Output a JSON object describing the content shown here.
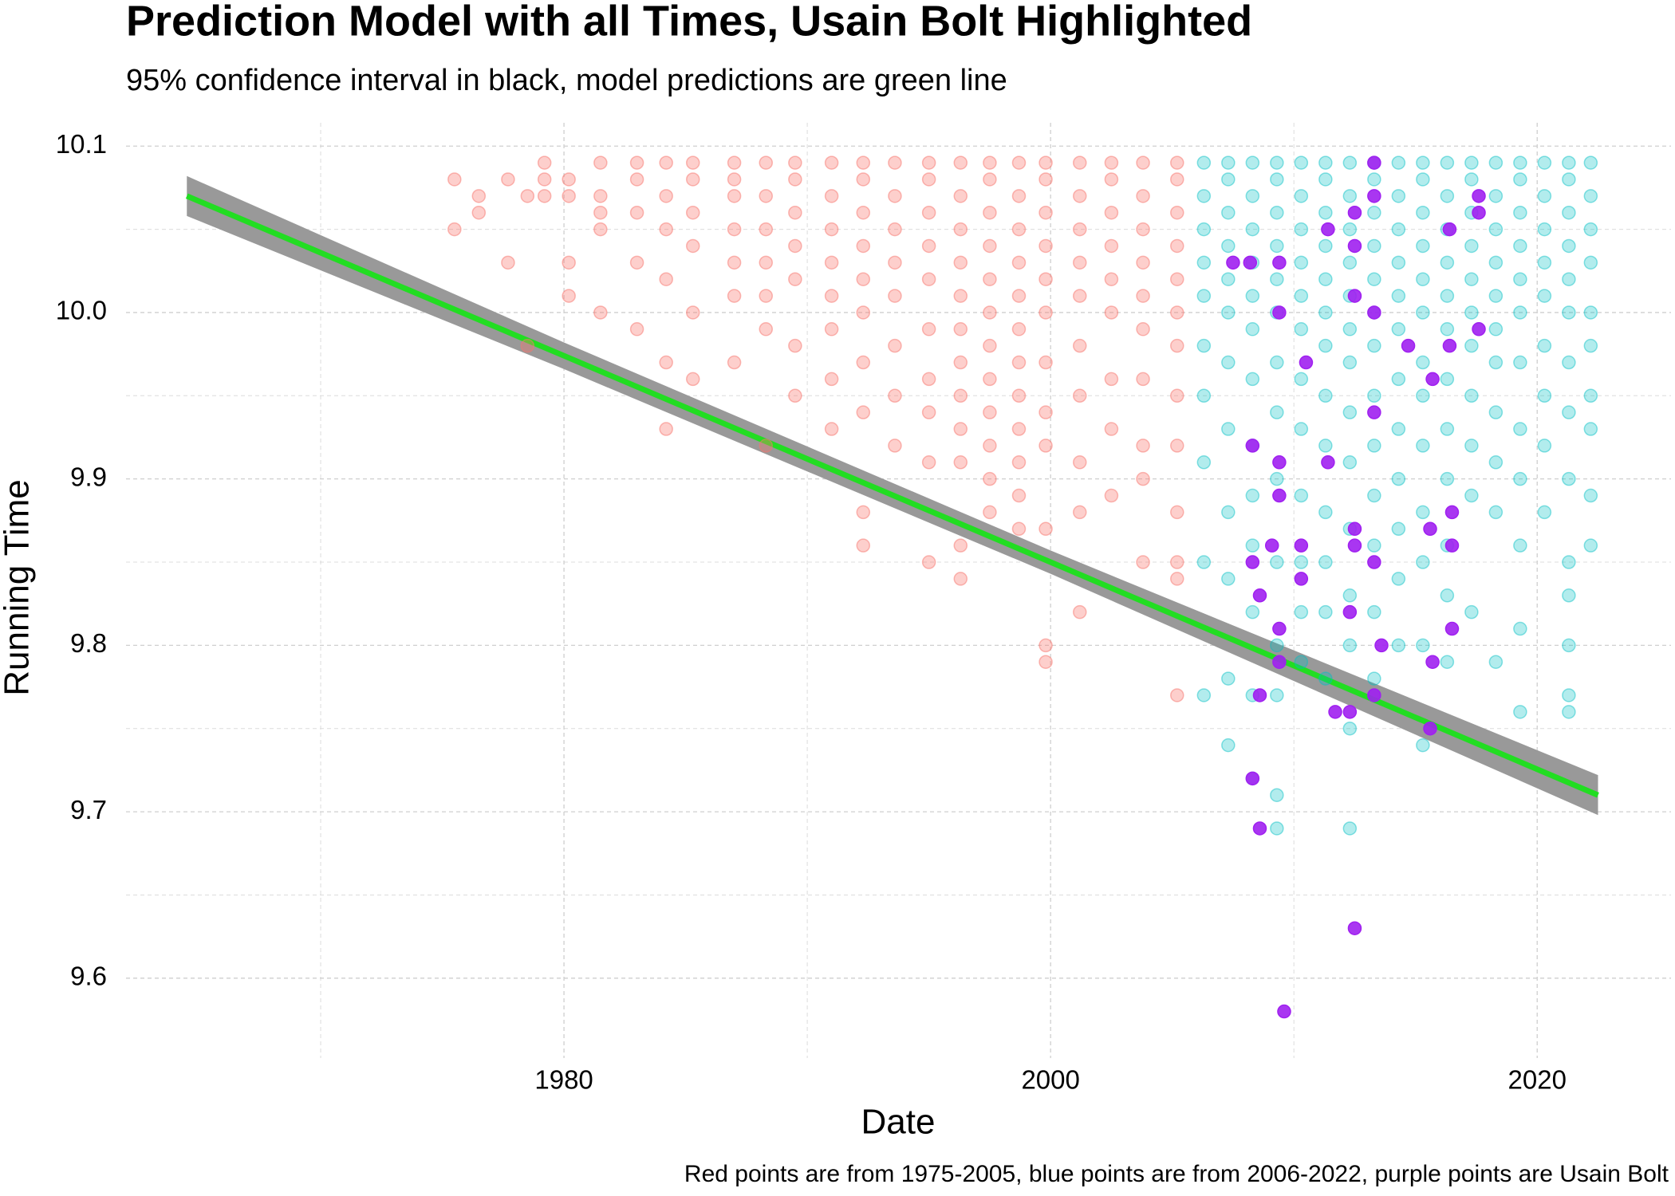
{
  "chart_data": {
    "type": "scatter",
    "title": "Prediction Model with all Times, Usain Bolt Highlighted",
    "subtitle": "95% confidence interval in black, model predictions are green line",
    "x_label": "Date",
    "y_label": "Running Time",
    "caption": "Red points are from 1975-2005, blue points are from 2006-2022, purple points are Usain Bolt",
    "xlim": [
      1962,
      2025.5
    ],
    "ylim": [
      9.552,
      10.114
    ],
    "xticks": [
      1980,
      2000,
      2020
    ],
    "xminor": [
      1970,
      1990,
      2010
    ],
    "yticks": [
      9.6,
      9.7,
      9.8,
      9.9,
      {
        "value": 10,
        "label": "10.0"
      },
      10.1
    ],
    "yminor": [
      9.65,
      9.75,
      9.85,
      9.95,
      10.05
    ],
    "grid": true,
    "line": {
      "color": "#22dd22",
      "band_color": "#999999",
      "x": [
        1964.5,
        1980,
        2000,
        2022.5
      ],
      "values": [
        10.07,
        9.974,
        9.85,
        9.71
      ],
      "lower": [
        10.058,
        9.966,
        9.843,
        9.698
      ],
      "upper": [
        10.082,
        9.982,
        9.857,
        9.722
      ]
    },
    "series": [
      {
        "color": "#F8766D",
        "opacity": 0.35,
        "x": [
          1975.5,
          1975.5,
          1976.5,
          1976.5,
          1977.7,
          1977.7,
          1978.5,
          1978.5,
          1979.2,
          1979.2,
          1979.2,
          1980.2,
          1980.2,
          1980.2,
          1980.2,
          1981.5,
          1981.5,
          1981.5,
          1981.5,
          1981.5,
          1983,
          1983,
          1983,
          1983,
          1983,
          1984.2,
          1984.2,
          1984.2,
          1984.2,
          1984.2,
          1984.2,
          1985.3,
          1985.3,
          1985.3,
          1985.3,
          1985.3,
          1985.3,
          1987,
          1987,
          1987,
          1987,
          1987,
          1987,
          1987,
          1988.3,
          1988.3,
          1988.3,
          1988.3,
          1988.3,
          1988.3,
          1988.3,
          1989.5,
          1989.5,
          1989.5,
          1989.5,
          1989.5,
          1989.5,
          1989.5,
          1991,
          1991,
          1991,
          1991,
          1991,
          1991,
          1991,
          1991,
          1992.3,
          1992.3,
          1992.3,
          1992.3,
          1992.3,
          1992.3,
          1992.3,
          1992.3,
          1992.3,
          1992.3,
          1993.6,
          1993.6,
          1993.6,
          1993.6,
          1993.6,
          1993.6,
          1993.6,
          1993.6,
          1995,
          1995,
          1995,
          1995,
          1995,
          1995,
          1995,
          1995,
          1995,
          1995,
          1996.3,
          1996.3,
          1996.3,
          1996.3,
          1996.3,
          1996.3,
          1996.3,
          1996.3,
          1996.3,
          1996.3,
          1996.3,
          1996.3,
          1997.5,
          1997.5,
          1997.5,
          1997.5,
          1997.5,
          1997.5,
          1997.5,
          1997.5,
          1997.5,
          1997.5,
          1997.5,
          1997.5,
          1998.7,
          1998.7,
          1998.7,
          1998.7,
          1998.7,
          1998.7,
          1998.7,
          1998.7,
          1998.7,
          1998.7,
          1998.7,
          1998.7,
          1999.8,
          1999.8,
          1999.8,
          1999.8,
          1999.8,
          1999.8,
          1999.8,
          1999.8,
          1999.8,
          1999.8,
          1999.8,
          1999.8,
          2001.2,
          2001.2,
          2001.2,
          2001.2,
          2001.2,
          2001.2,
          2001.2,
          2001.2,
          2001.2,
          2001.2,
          2002.5,
          2002.5,
          2002.5,
          2002.5,
          2002.5,
          2002.5,
          2002.5,
          2002.5,
          2002.5,
          2003.8,
          2003.8,
          2003.8,
          2003.8,
          2003.8,
          2003.8,
          2003.8,
          2003.8,
          2003.8,
          2003.8,
          2005.2,
          2005.2,
          2005.2,
          2005.2,
          2005.2,
          2005.2,
          2005.2,
          2005.2,
          2005.2,
          2005.2,
          2005.2,
          2005.2,
          2005.2
        ],
        "values": [
          10.08,
          10.05,
          10.07,
          10.06,
          10.08,
          10.03,
          10.07,
          9.98,
          10.09,
          10.08,
          10.07,
          10.08,
          10.07,
          10.03,
          10.01,
          10.09,
          10.07,
          10.06,
          10.05,
          10.0,
          10.09,
          10.08,
          10.06,
          10.03,
          9.99,
          10.09,
          10.07,
          10.05,
          10.02,
          9.97,
          9.93,
          10.09,
          10.08,
          10.06,
          10.04,
          10.0,
          9.96,
          10.09,
          10.08,
          10.07,
          10.05,
          10.03,
          10.01,
          9.97,
          10.09,
          10.07,
          10.05,
          10.03,
          10.01,
          9.99,
          9.92,
          10.09,
          10.08,
          10.06,
          10.04,
          10.02,
          9.98,
          9.95,
          10.09,
          10.07,
          10.05,
          10.03,
          10.01,
          9.99,
          9.96,
          9.93,
          10.09,
          10.08,
          10.06,
          10.04,
          10.02,
          10.0,
          9.97,
          9.94,
          9.88,
          9.86,
          10.09,
          10.07,
          10.05,
          10.03,
          10.01,
          9.98,
          9.95,
          9.92,
          10.09,
          10.08,
          10.06,
          10.04,
          10.02,
          9.99,
          9.96,
          9.94,
          9.91,
          9.85,
          10.09,
          10.07,
          10.05,
          10.03,
          10.01,
          9.99,
          9.97,
          9.95,
          9.93,
          9.91,
          9.86,
          9.84,
          10.09,
          10.08,
          10.06,
          10.04,
          10.02,
          10.0,
          9.98,
          9.96,
          9.94,
          9.92,
          9.9,
          9.88,
          10.09,
          10.07,
          10.05,
          10.03,
          10.01,
          9.99,
          9.97,
          9.95,
          9.93,
          9.91,
          9.89,
          9.87,
          10.09,
          10.08,
          10.06,
          10.04,
          10.02,
          10.0,
          9.97,
          9.94,
          9.92,
          9.87,
          9.8,
          9.79,
          10.09,
          10.07,
          10.05,
          10.03,
          10.01,
          9.98,
          9.95,
          9.91,
          9.88,
          9.82,
          10.09,
          10.08,
          10.06,
          10.04,
          10.02,
          10.0,
          9.96,
          9.93,
          9.89,
          10.09,
          10.07,
          10.05,
          10.03,
          10.01,
          9.99,
          9.96,
          9.92,
          9.9,
          9.85,
          10.09,
          10.08,
          10.06,
          10.04,
          10.02,
          10.0,
          9.98,
          9.95,
          9.92,
          9.88,
          9.85,
          9.84,
          9.77
        ]
      },
      {
        "color": "#00BFC4",
        "opacity": 0.3,
        "x": [
          2006.3,
          2006.3,
          2006.3,
          2006.3,
          2006.3,
          2006.3,
          2006.3,
          2006.3,
          2006.3,
          2006.3,
          2007.3,
          2007.3,
          2007.3,
          2007.3,
          2007.3,
          2007.3,
          2007.3,
          2007.3,
          2007.3,
          2007.3,
          2007.3,
          2007.3,
          2008.3,
          2008.3,
          2008.3,
          2008.3,
          2008.3,
          2008.3,
          2008.3,
          2008.3,
          2008.3,
          2008.3,
          2008.3,
          2008.3,
          2008.3,
          2009.3,
          2009.3,
          2009.3,
          2009.3,
          2009.3,
          2009.3,
          2009.3,
          2009.3,
          2009.3,
          2009.3,
          2009.3,
          2009.3,
          2009.3,
          2009.3,
          2010.3,
          2010.3,
          2010.3,
          2010.3,
          2010.3,
          2010.3,
          2010.3,
          2010.3,
          2010.3,
          2010.3,
          2010.3,
          2010.3,
          2011.3,
          2011.3,
          2011.3,
          2011.3,
          2011.3,
          2011.3,
          2011.3,
          2011.3,
          2011.3,
          2011.3,
          2011.3,
          2011.3,
          2011.3,
          2012.3,
          2012.3,
          2012.3,
          2012.3,
          2012.3,
          2012.3,
          2012.3,
          2012.3,
          2012.3,
          2012.3,
          2012.3,
          2012.3,
          2012.3,
          2012.3,
          2013.3,
          2013.3,
          2013.3,
          2013.3,
          2013.3,
          2013.3,
          2013.3,
          2013.3,
          2013.3,
          2013.3,
          2013.3,
          2013.3,
          2013.3,
          2014.3,
          2014.3,
          2014.3,
          2014.3,
          2014.3,
          2014.3,
          2014.3,
          2014.3,
          2014.3,
          2014.3,
          2014.3,
          2014.3,
          2015.3,
          2015.3,
          2015.3,
          2015.3,
          2015.3,
          2015.3,
          2015.3,
          2015.3,
          2015.3,
          2015.3,
          2015.3,
          2015.3,
          2015.3,
          2016.3,
          2016.3,
          2016.3,
          2016.3,
          2016.3,
          2016.3,
          2016.3,
          2016.3,
          2016.3,
          2016.3,
          2016.3,
          2016.3,
          2017.3,
          2017.3,
          2017.3,
          2017.3,
          2017.3,
          2017.3,
          2017.3,
          2017.3,
          2017.3,
          2017.3,
          2017.3,
          2018.3,
          2018.3,
          2018.3,
          2018.3,
          2018.3,
          2018.3,
          2018.3,
          2018.3,
          2018.3,
          2018.3,
          2018.3,
          2019.3,
          2019.3,
          2019.3,
          2019.3,
          2019.3,
          2019.3,
          2019.3,
          2019.3,
          2019.3,
          2019.3,
          2019.3,
          2019.3,
          2020.3,
          2020.3,
          2020.3,
          2020.3,
          2020.3,
          2020.3,
          2020.3,
          2020.3,
          2020.3,
          2021.3,
          2021.3,
          2021.3,
          2021.3,
          2021.3,
          2021.3,
          2021.3,
          2021.3,
          2021.3,
          2021.3,
          2021.3,
          2021.3,
          2021.3,
          2021.3,
          2022.2,
          2022.2,
          2022.2,
          2022.2,
          2022.2,
          2022.2,
          2022.2,
          2022.2,
          2022.2,
          2022.2
        ],
        "values": [
          10.09,
          10.07,
          10.05,
          10.03,
          10.01,
          9.98,
          9.95,
          9.91,
          9.85,
          9.77,
          10.09,
          10.08,
          10.06,
          10.04,
          10.02,
          10.0,
          9.97,
          9.93,
          9.88,
          9.84,
          9.78,
          9.74,
          10.09,
          10.07,
          10.05,
          10.03,
          10.01,
          9.99,
          9.96,
          9.92,
          9.89,
          9.86,
          9.82,
          9.77,
          9.72,
          10.09,
          10.08,
          10.06,
          10.04,
          10.02,
          10.0,
          9.97,
          9.94,
          9.9,
          9.85,
          9.8,
          9.77,
          9.71,
          9.69,
          10.09,
          10.07,
          10.05,
          10.03,
          10.01,
          9.99,
          9.96,
          9.93,
          9.89,
          9.85,
          9.82,
          9.79,
          10.09,
          10.08,
          10.06,
          10.04,
          10.02,
          10.0,
          9.98,
          9.95,
          9.92,
          9.88,
          9.85,
          9.82,
          9.78,
          10.09,
          10.07,
          10.05,
          10.03,
          10.01,
          9.99,
          9.97,
          9.94,
          9.91,
          9.87,
          9.83,
          9.8,
          9.75,
          9.69,
          10.09,
          10.08,
          10.06,
          10.04,
          10.02,
          10.0,
          9.98,
          9.95,
          9.92,
          9.89,
          9.86,
          9.82,
          9.78,
          10.09,
          10.07,
          10.05,
          10.03,
          10.01,
          9.99,
          9.96,
          9.93,
          9.9,
          9.87,
          9.84,
          9.8,
          10.09,
          10.08,
          10.06,
          10.04,
          10.02,
          10.0,
          9.97,
          9.95,
          9.92,
          9.88,
          9.85,
          9.8,
          9.74,
          10.09,
          10.07,
          10.05,
          10.03,
          10.01,
          9.99,
          9.96,
          9.93,
          9.9,
          9.86,
          9.83,
          9.79,
          10.09,
          10.08,
          10.06,
          10.04,
          10.02,
          10.0,
          9.98,
          9.95,
          9.92,
          9.89,
          9.82,
          10.09,
          10.07,
          10.05,
          10.03,
          10.01,
          9.99,
          9.97,
          9.94,
          9.91,
          9.88,
          9.79,
          10.09,
          10.08,
          10.06,
          10.04,
          10.02,
          10.0,
          9.97,
          9.93,
          9.9,
          9.86,
          9.81,
          9.76,
          10.09,
          10.07,
          10.05,
          10.03,
          10.01,
          9.98,
          9.95,
          9.92,
          9.88,
          10.09,
          10.08,
          10.06,
          10.04,
          10.02,
          10.0,
          9.97,
          9.94,
          9.9,
          9.85,
          9.83,
          9.8,
          9.77,
          9.76,
          10.09,
          10.07,
          10.05,
          10.03,
          10.0,
          9.98,
          9.95,
          9.93,
          9.89,
          9.86
        ]
      },
      {
        "color": "#A020F0",
        "opacity": 0.9,
        "x": [
          2007.5,
          2008.2,
          2008.3,
          2008.3,
          2008.3,
          2008.6,
          2008.6,
          2008.6,
          2009.1,
          2009.4,
          2009.4,
          2009.4,
          2009.4,
          2009.4,
          2009.4,
          2009.6,
          2010.3,
          2010.3,
          2010.5,
          2011.4,
          2011.4,
          2011.7,
          2012.3,
          2012.3,
          2012.5,
          2012.5,
          2012.5,
          2012.5,
          2012.5,
          2012.5,
          2013.3,
          2013.3,
          2013.3,
          2013.3,
          2013.3,
          2013.3,
          2013.6,
          2014.7,
          2015.6,
          2015.6,
          2015.7,
          2015.7,
          2016.4,
          2016.4,
          2016.5,
          2016.5,
          2016.5,
          2017.6,
          2017.6,
          2017.6
        ],
        "values": [
          10.03,
          10.03,
          9.92,
          9.85,
          9.72,
          9.83,
          9.77,
          9.69,
          9.86,
          10.03,
          10.0,
          9.91,
          9.89,
          9.81,
          9.79,
          9.58,
          9.86,
          9.84,
          9.97,
          9.91,
          10.05,
          9.76,
          9.82,
          9.76,
          10.06,
          10.04,
          10.01,
          9.87,
          9.86,
          9.63,
          10.09,
          10.07,
          10.0,
          9.94,
          9.85,
          9.77,
          9.8,
          9.98,
          9.87,
          9.75,
          9.96,
          9.79,
          10.05,
          9.98,
          9.88,
          9.86,
          9.81,
          10.07,
          10.06,
          9.99
        ]
      }
    ]
  }
}
